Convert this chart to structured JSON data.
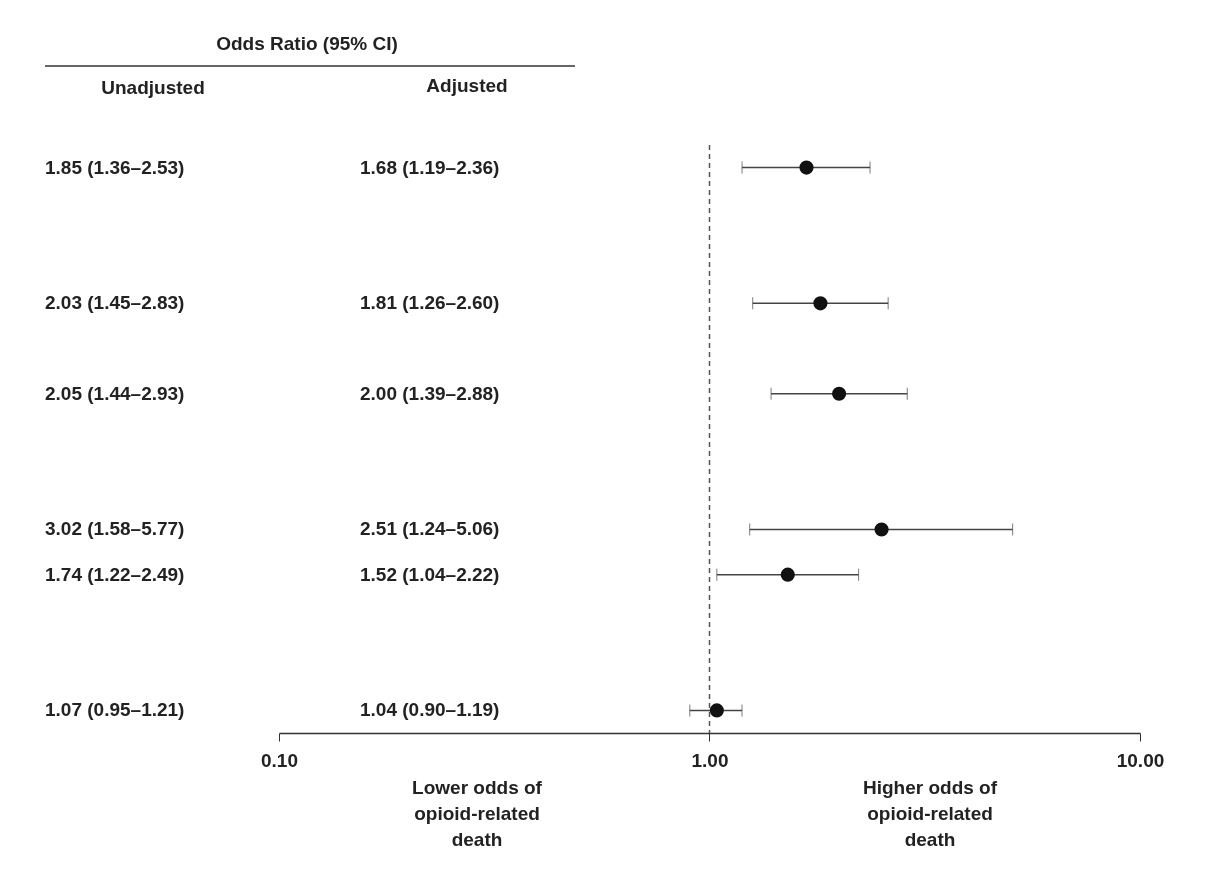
{
  "chart_data": {
    "type": "scatter",
    "orientation": "horizontal",
    "categories": [
      null,
      null,
      null,
      null,
      null,
      null,
      null,
      null,
      null,
      null,
      null,
      null,
      null
    ],
    "values": [
      1.68,
      null,
      null,
      1.81,
      null,
      2.0,
      null,
      null,
      2.51,
      1.52,
      null,
      null,
      1.04
    ],
    "errors": [
      [
        1.19,
        2.36
      ],
      null,
      null,
      [
        1.26,
        2.6
      ],
      null,
      [
        1.39,
        2.88
      ],
      null,
      null,
      [
        1.24,
        5.06
      ],
      [
        1.04,
        2.22
      ],
      null,
      null,
      [
        0.9,
        1.19
      ]
    ],
    "color": "#111111",
    "marker": "circle",
    "annotations": [
      "Odds Ratio (95% CI)",
      "Unadjusted",
      "Adjusted",
      "1.85 (1.36–2.53)",
      "2.03 (1.45–2.83)",
      "2.05 (1.44–2.93)",
      "3.02 (1.58–5.77)",
      "1.74 (1.22–2.49)",
      "1.07 (0.95–1.21)",
      "1.68 (1.19–2.36)",
      "1.81 (1.26–2.60)",
      "2.00 (1.39–2.88)",
      "2.51 (1.24–5.06)",
      "1.52 (1.04–2.22)",
      "1.04 (0.90–1.19)",
      "Lower odds of\nopioid-related\ndeath",
      "Higher odds of\nopioid-related\ndeath"
    ],
    "log": "x",
    "xlim": [
      0.1,
      10
    ],
    "xticks": [
      {
        "value": 0.1,
        "label": "0.10"
      },
      {
        "value": 1,
        "label": "1.00"
      },
      {
        "value": 10,
        "label": "10.00"
      }
    ],
    "ref_lines": [
      {
        "axis": "x",
        "value": 1,
        "line_style": "dashed",
        "color": "#555555"
      }
    ],
    "tick_labels": "x",
    "grid": false
  }
}
